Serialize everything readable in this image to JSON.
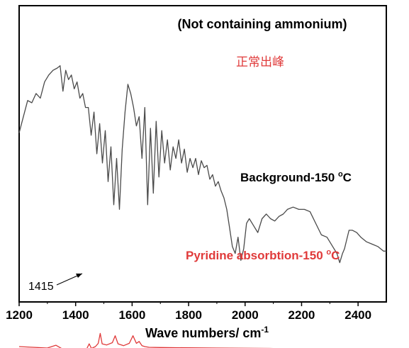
{
  "chart_data": {
    "type": "line",
    "title": "",
    "xlabel": "Wave numbers/ cm",
    "xlabel_superscript": "-1",
    "ylabel": "",
    "xlim": [
      1200,
      2500
    ],
    "ylim": [
      0,
      100
    ],
    "xticks": [
      1200,
      1400,
      1600,
      1800,
      2000,
      2200,
      2400
    ],
    "grid": false,
    "legend": "none",
    "annotations": {
      "condition": "(Not containing ammonium)",
      "chinese_note": "正常出峰",
      "background_label": "Background-150 ",
      "background_label_unit": "C",
      "pyridine_label": "Pyridine absorbtion-150 ",
      "pyridine_label_unit": "C",
      "degree_symbol": "o",
      "arrow_label": "1415"
    },
    "series": [
      {
        "color": "#4a4a4a",
        "x": [
          1200,
          1215,
          1230,
          1245,
          1260,
          1275,
          1290,
          1305,
          1320,
          1335,
          1345,
          1355,
          1365,
          1375,
          1385,
          1395,
          1405,
          1415,
          1425,
          1435,
          1445,
          1455,
          1465,
          1475,
          1485,
          1495,
          1505,
          1515,
          1525,
          1535,
          1545,
          1555,
          1565,
          1575,
          1585,
          1595,
          1605,
          1615,
          1625,
          1635,
          1645,
          1655,
          1665,
          1675,
          1685,
          1695,
          1705,
          1715,
          1725,
          1735,
          1745,
          1755,
          1765,
          1775,
          1785,
          1795,
          1805,
          1815,
          1825,
          1835,
          1845,
          1855,
          1865,
          1875,
          1885,
          1895,
          1905,
          1915,
          1925,
          1935,
          1945,
          1955,
          1965,
          1975,
          1985,
          1995,
          2005,
          2015,
          2030,
          2045,
          2060,
          2075,
          2090,
          2105,
          2120,
          2135,
          2150,
          2170,
          2190,
          2210,
          2230,
          2250,
          2270,
          2290,
          2310,
          2325,
          2335,
          2345,
          2352,
          2360,
          2368,
          2380,
          2395,
          2410,
          2430,
          2450,
          2470,
          2490,
          2500
        ],
        "values": [
          61,
          68,
          75,
          74,
          78,
          76,
          83,
          86,
          88,
          89,
          90,
          79,
          88,
          84,
          86,
          80,
          83,
          76,
          78,
          72,
          72,
          60,
          70,
          52,
          65,
          48,
          62,
          40,
          55,
          30,
          50,
          28,
          54,
          70,
          82,
          78,
          72,
          64,
          68,
          50,
          72,
          30,
          63,
          35,
          66,
          42,
          62,
          48,
          58,
          45,
          55,
          50,
          58,
          48,
          54,
          44,
          50,
          46,
          50,
          43,
          49,
          46,
          47,
          41,
          43,
          38,
          40,
          36,
          33,
          28,
          20,
          12,
          9,
          16,
          6,
          11,
          22,
          24,
          21,
          18,
          24,
          26,
          24,
          23,
          25,
          26,
          28,
          29,
          28,
          28,
          27,
          22,
          17,
          16,
          12,
          9,
          5,
          9,
          11,
          15,
          19,
          19,
          18,
          16,
          14,
          13,
          12,
          10,
          10
        ]
      },
      {
        "color": "#e03a3a",
        "x": [
          1200,
          1250,
          1300,
          1330,
          1350,
          1380,
          1420,
          1440,
          1448,
          1456,
          1470,
          1480,
          1487,
          1494,
          1510,
          1530,
          1540,
          1550,
          1570,
          1590,
          1603,
          1615,
          1625,
          1635,
          1645,
          1660,
          1700,
          1800,
          1900,
          2000,
          2100,
          2200,
          2300,
          2400,
          2500
        ],
        "values": [
          -31.2,
          -31.5,
          -31.8,
          -30.6,
          -32.0,
          -32.2,
          -32.5,
          -32.0,
          -30.0,
          -32.0,
          -31.2,
          -29.8,
          -25.5,
          -30.0,
          -30.5,
          -29.5,
          -26.5,
          -30.0,
          -30.8,
          -29.8,
          -26.5,
          -29.8,
          -29.0,
          -30.8,
          -31.2,
          -31.5,
          -31.6,
          -31.7,
          -31.8,
          -31.9,
          -32.0,
          -32.0,
          -32.1,
          -32.2,
          -32.3
        ]
      }
    ]
  }
}
